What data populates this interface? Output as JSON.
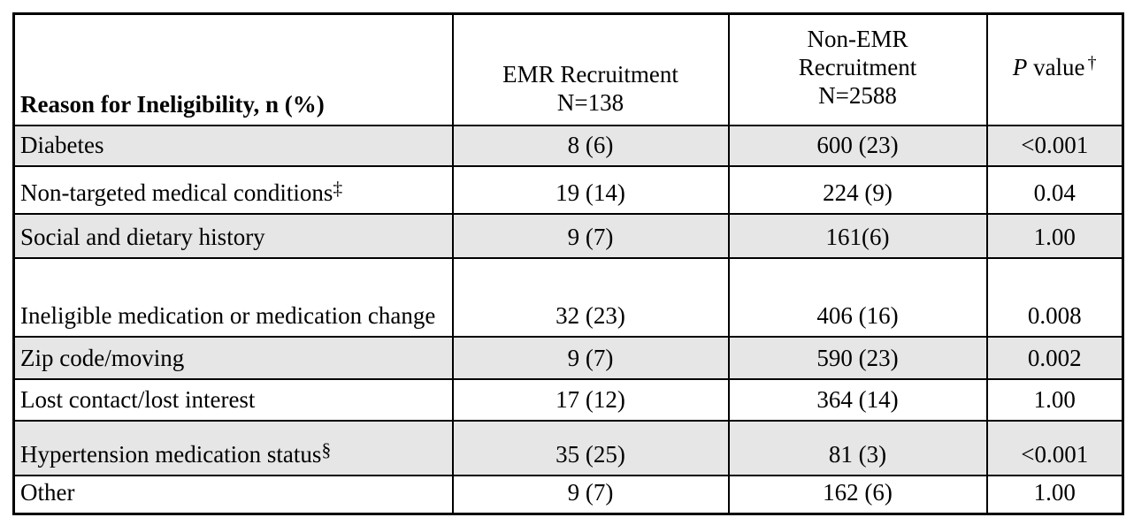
{
  "table": {
    "header": {
      "col1": "Reason for Ineligibility, n (%)",
      "col2_line1": "EMR Recruitment",
      "col2_line2": "N=138",
      "col3_line1": "Non-EMR",
      "col3_line2": "Recruitment",
      "col3_line3": "N=2588",
      "col4_p": "P",
      "col4_value": " value",
      "col4_dagger": "†"
    },
    "rows": [
      {
        "label": "Diabetes",
        "sup": "",
        "emr": "8 (6)",
        "non_emr": "600 (23)",
        "p": "<0.001",
        "shaded": true
      },
      {
        "label": "Non-targeted medical conditions",
        "sup": "‡",
        "emr": "19 (14)",
        "non_emr": "224 (9)",
        "p": "0.04",
        "shaded": false
      },
      {
        "label": "Social and dietary history",
        "sup": "",
        "emr": "9 (7)",
        "non_emr": "161(6)",
        "p": "1.00",
        "shaded": true
      },
      {
        "label": "Ineligible medication or medication change",
        "sup": "",
        "emr": "32 (23)",
        "non_emr": "406 (16)",
        "p": "0.008",
        "shaded": false
      },
      {
        "label": "Zip code/moving",
        "sup": "",
        "emr": "9 (7)",
        "non_emr": "590 (23)",
        "p": "0.002",
        "shaded": true
      },
      {
        "label": "Lost contact/lost interest",
        "sup": "",
        "emr": "17 (12)",
        "non_emr": "364 (14)",
        "p": "1.00",
        "shaded": false
      },
      {
        "label": "Hypertension medication status",
        "sup": "§",
        "emr": "35 (25)",
        "non_emr": "81 (3)",
        "p": "<0.001",
        "shaded": true
      },
      {
        "label": "Other",
        "sup": "",
        "emr": "9 (7)",
        "non_emr": "162 (6)",
        "p": "1.00",
        "shaded": false
      }
    ],
    "colors": {
      "row_shade": "#e6e6e6",
      "border": "#000000",
      "background": "#ffffff"
    }
  }
}
